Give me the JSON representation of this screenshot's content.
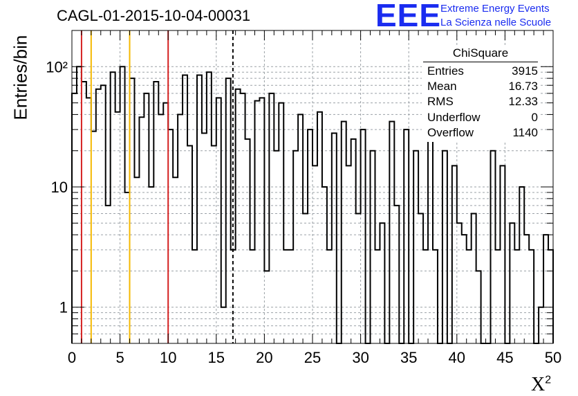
{
  "title": "CAGL-01-2015-10-04-00031",
  "logo": {
    "mark": "EEE",
    "line1": "Extreme Energy Events",
    "line2": "La Scienza nelle Scuole"
  },
  "stats_box": {
    "title": "ChiSquare",
    "rows": [
      {
        "label": "Entries",
        "value": "3915"
      },
      {
        "label": "Mean",
        "value": "16.73"
      },
      {
        "label": "RMS",
        "value": "12.33"
      },
      {
        "label": "Underflow",
        "value": "0"
      },
      {
        "label": "Overflow",
        "value": "1140"
      }
    ]
  },
  "chart_data": {
    "type": "histogram",
    "xlabel": "X",
    "xlabel_superscript": "2",
    "ylabel": "Entries/bin",
    "xlim": [
      0,
      50
    ],
    "ylim": [
      0.5,
      200
    ],
    "yscale": "log",
    "bin_width": 0.5,
    "grid": true,
    "x_ticks": [
      0,
      5,
      10,
      15,
      20,
      25,
      30,
      35,
      40,
      45,
      50
    ],
    "x_tick_labels": [
      "0",
      "5",
      "10",
      "15",
      "20",
      "25",
      "30",
      "35",
      "40",
      "45",
      "50"
    ],
    "y_ticks": [
      1,
      10,
      100
    ],
    "y_tick_labels": [
      "1",
      "10",
      "10²"
    ],
    "values": [
      60,
      100,
      75,
      55,
      29,
      65,
      70,
      7,
      90,
      42,
      100,
      9,
      80,
      12,
      38,
      60,
      10,
      75,
      40,
      50,
      30,
      12,
      40,
      85,
      22,
      3,
      85,
      28,
      90,
      22,
      55,
      1,
      80,
      3,
      65,
      60,
      25,
      3,
      52,
      55,
      2,
      60,
      20,
      50,
      3,
      3,
      20,
      40,
      6,
      30,
      15,
      42,
      10,
      3,
      28,
      0,
      35,
      15,
      25,
      6,
      30,
      0,
      20,
      3,
      5,
      0,
      35,
      7,
      0,
      30,
      0,
      20,
      6,
      3,
      25,
      3,
      0,
      20,
      0,
      15,
      5,
      4,
      3,
      6,
      2,
      0,
      0,
      20,
      3,
      15,
      0,
      5,
      3,
      10,
      4,
      3,
      0,
      1,
      4,
      3
    ],
    "vertical_lines": [
      {
        "x": 1,
        "color": "#d42020",
        "style": "solid"
      },
      {
        "x": 2,
        "color": "#f5b800",
        "style": "solid"
      },
      {
        "x": 6,
        "color": "#f5b800",
        "style": "solid"
      },
      {
        "x": 10,
        "color": "#d42020",
        "style": "solid"
      },
      {
        "x": 16.73,
        "color": "#000000",
        "style": "dashed"
      }
    ],
    "line_color": "#000000"
  }
}
